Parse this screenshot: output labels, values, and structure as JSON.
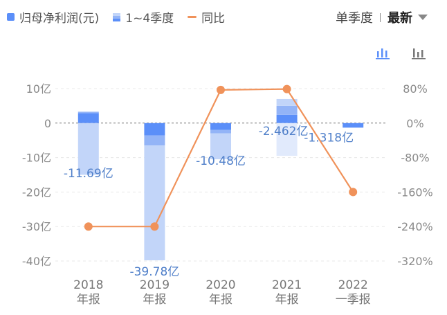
{
  "legend": {
    "items": [
      {
        "label": "归母净利润(元)",
        "icon": "solid-bar-swatch"
      },
      {
        "label": "1~4季度",
        "icon": "stacked-bar-swatch"
      },
      {
        "label": "同比",
        "icon": "line-swatch"
      }
    ]
  },
  "toggle": {
    "option": "单季度",
    "selected": "最新"
  },
  "icons": {
    "bar_chart": "bar-chart-icon",
    "bar_chart_alt": "bar-chart-alt-icon"
  },
  "colors": {
    "bar_primary": "#5b8ff9",
    "bar_q2": "#93b4f7",
    "bar_q3": "#c2d5f9",
    "bar_q4": "#e1eafc",
    "line": "#f0925a",
    "active_icon": "#5b8ff9",
    "inactive_icon": "#777777"
  },
  "chart_data": {
    "type": "bar",
    "categories": [
      "2018\n年报",
      "2019\n年报",
      "2020\n年报",
      "2021\n年报",
      "2022\n一季报"
    ],
    "stacked_quarters": [
      [
        2.9,
        0.4,
        -15.0,
        -0.0
      ],
      [
        -3.6,
        -2.9,
        -33.3,
        -0.0
      ],
      [
        -2.0,
        -1.0,
        -7.5,
        -0.0
      ],
      [
        2.4,
        2.6,
        2.0,
        -9.5
      ],
      [
        -1.318
      ]
    ],
    "values": [
      -11.69,
      -39.78,
      -10.48,
      -2.462,
      -1.318
    ],
    "value_labels": [
      "-11.69亿",
      "-39.78亿",
      "-10.48亿",
      "-2.462亿",
      "-1.318亿"
    ],
    "yoy": [
      -240,
      -240,
      77,
      79,
      -160
    ],
    "left_axis": {
      "ticks": [
        10,
        0,
        -10,
        -20,
        -30,
        -40
      ],
      "labels": [
        "10亿",
        "0",
        "-10亿",
        "-20亿",
        "-30亿",
        "-40亿"
      ],
      "ylim": [
        -40,
        10
      ]
    },
    "right_axis": {
      "ticks": [
        80,
        0,
        -80,
        -160,
        -240,
        -320
      ],
      "labels": [
        "80%",
        "0%",
        "-80%",
        "-160%",
        "-240%",
        "-320%"
      ],
      "ylim": [
        -320,
        80
      ]
    },
    "grid": true
  }
}
